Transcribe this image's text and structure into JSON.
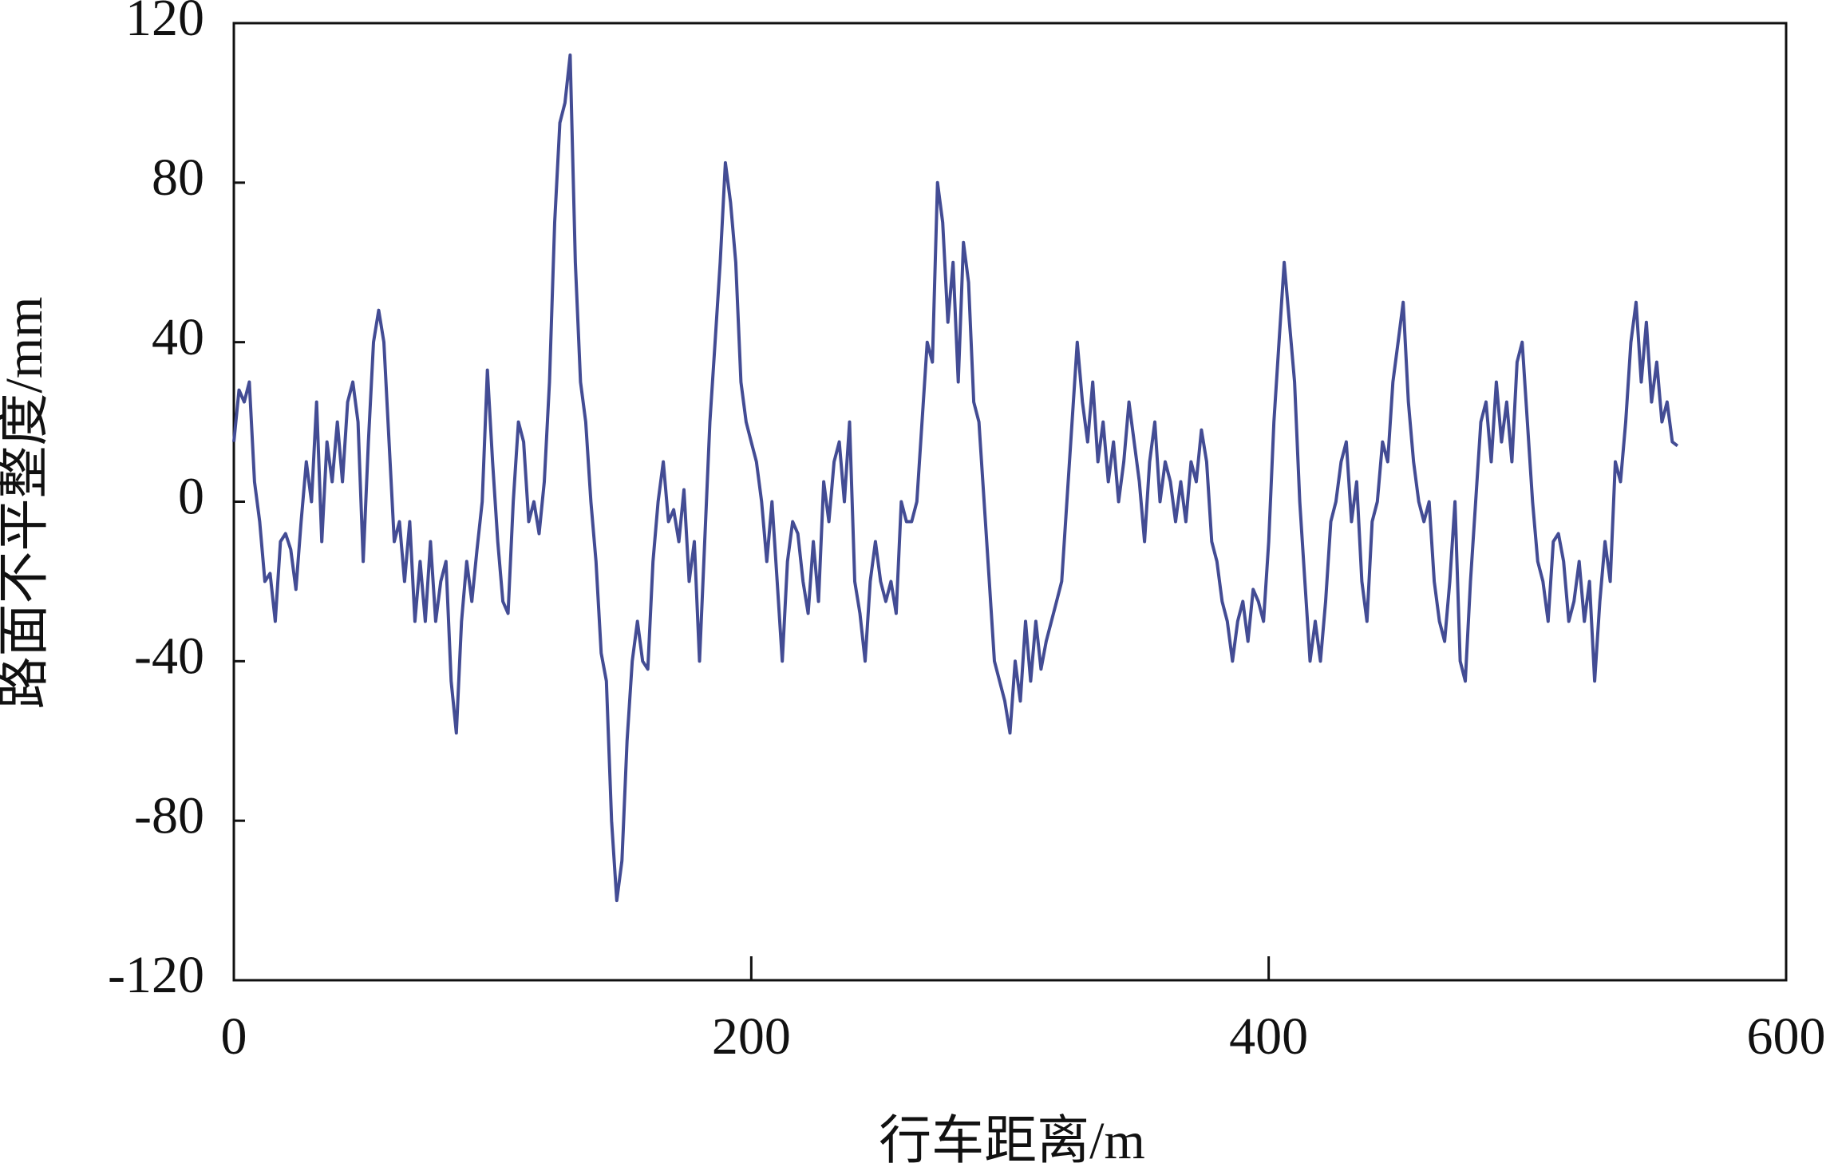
{
  "chart_data": {
    "type": "line",
    "x_label": "行车距离/m",
    "y_label": "路面不平整度/mm",
    "xlim": [
      0,
      600
    ],
    "xticks": [
      0,
      200,
      400,
      600
    ],
    "ylim": [
      -120,
      120
    ],
    "yticks": [
      -120,
      -80,
      -40,
      0,
      40,
      80,
      120
    ],
    "color": "#434c94",
    "x": [
      0,
      2,
      4,
      6,
      8,
      10,
      12,
      14,
      16,
      18,
      20,
      22,
      24,
      26,
      28,
      30,
      32,
      34,
      36,
      38,
      40,
      42,
      44,
      46,
      48,
      50,
      52,
      54,
      56,
      58,
      60,
      62,
      64,
      66,
      68,
      70,
      72,
      74,
      76,
      78,
      80,
      82,
      84,
      86,
      88,
      90,
      92,
      94,
      96,
      98,
      100,
      102,
      104,
      106,
      108,
      110,
      112,
      114,
      116,
      118,
      120,
      122,
      124,
      126,
      128,
      130,
      132,
      134,
      136,
      138,
      140,
      142,
      144,
      146,
      148,
      150,
      152,
      154,
      156,
      158,
      160,
      162,
      164,
      166,
      168,
      170,
      172,
      174,
      176,
      178,
      180,
      182,
      184,
      186,
      188,
      190,
      192,
      194,
      196,
      198,
      200,
      202,
      204,
      206,
      208,
      210,
      212,
      214,
      216,
      218,
      220,
      222,
      224,
      226,
      228,
      230,
      232,
      234,
      236,
      238,
      240,
      242,
      244,
      246,
      248,
      250,
      252,
      254,
      256,
      258,
      260,
      262,
      264,
      266,
      268,
      270,
      272,
      274,
      276,
      278,
      280,
      282,
      284,
      286,
      288,
      290,
      292,
      294,
      296,
      298,
      300,
      302,
      304,
      306,
      308,
      310,
      312,
      314,
      316,
      318,
      320,
      322,
      324,
      326,
      328,
      330,
      332,
      334,
      336,
      338,
      340,
      342,
      344,
      346,
      348,
      350,
      352,
      354,
      356,
      358,
      360,
      362,
      364,
      366,
      368,
      370,
      372,
      374,
      376,
      378,
      380,
      382,
      384,
      386,
      388,
      390,
      392,
      394,
      396,
      398,
      400,
      402,
      404,
      406,
      408,
      410,
      412,
      414,
      416,
      418,
      420,
      422,
      424,
      426,
      428,
      430,
      432,
      434,
      436,
      438,
      440,
      442,
      444,
      446,
      448,
      450,
      452,
      454,
      456,
      458,
      460,
      462,
      464,
      466,
      468,
      470,
      472,
      474,
      476,
      478,
      480,
      482,
      484,
      486,
      488,
      490,
      492,
      494,
      496,
      498,
      500,
      502,
      504,
      506,
      508,
      510,
      512,
      514,
      516,
      518,
      520,
      522,
      524,
      526,
      528,
      530,
      532,
      534,
      536,
      538,
      540,
      542,
      544,
      546,
      548,
      550,
      552,
      554,
      556,
      558
    ],
    "values": [
      15,
      28,
      25,
      30,
      5,
      -5,
      -20,
      -18,
      -30,
      -10,
      -8,
      -12,
      -22,
      -5,
      10,
      0,
      25,
      -10,
      15,
      5,
      20,
      5,
      25,
      30,
      20,
      -15,
      15,
      40,
      48,
      40,
      15,
      -10,
      -5,
      -20,
      -5,
      -30,
      -15,
      -30,
      -10,
      -30,
      -20,
      -15,
      -45,
      -58,
      -30,
      -15,
      -25,
      -12,
      0,
      33,
      10,
      -10,
      -25,
      -28,
      0,
      20,
      15,
      -5,
      0,
      -8,
      5,
      30,
      70,
      95,
      100,
      112,
      60,
      30,
      20,
      0,
      -15,
      -38,
      -45,
      -80,
      -100,
      -90,
      -60,
      -40,
      -30,
      -40,
      -42,
      -15,
      0,
      10,
      -5,
      -2,
      -10,
      3,
      -20,
      -10,
      -40,
      -10,
      20,
      40,
      60,
      85,
      75,
      60,
      30,
      20,
      15,
      10,
      0,
      -15,
      0,
      -20,
      -40,
      -15,
      -5,
      -8,
      -20,
      -28,
      -10,
      -25,
      5,
      -5,
      10,
      15,
      0,
      20,
      -20,
      -28,
      -40,
      -20,
      -10,
      -20,
      -25,
      -20,
      -28,
      0,
      -5,
      -5,
      0,
      20,
      40,
      35,
      80,
      70,
      45,
      60,
      30,
      65,
      55,
      25,
      20,
      0,
      -20,
      -40,
      -45,
      -50,
      -58,
      -40,
      -50,
      -30,
      -45,
      -30,
      -42,
      -35,
      -30,
      -25,
      -20,
      0,
      20,
      40,
      25,
      15,
      30,
      10,
      20,
      5,
      15,
      0,
      10,
      25,
      15,
      5,
      -10,
      10,
      20,
      0,
      10,
      5,
      -5,
      5,
      -5,
      10,
      5,
      18,
      10,
      -10,
      -15,
      -25,
      -30,
      -40,
      -30,
      -25,
      -35,
      -22,
      -25,
      -30,
      -10,
      20,
      40,
      60,
      45,
      30,
      0,
      -20,
      -40,
      -30,
      -40,
      -25,
      -5,
      0,
      10,
      15,
      -5,
      5,
      -20,
      -30,
      -5,
      0,
      15,
      10,
      30,
      40,
      50,
      25,
      10,
      0,
      -5,
      0,
      -20,
      -30,
      -35,
      -20,
      0,
      -40,
      -45,
      -20,
      0,
      20,
      25,
      10,
      30,
      15,
      25,
      10,
      35,
      40,
      20,
      0,
      -15,
      -20,
      -30,
      -10,
      -8,
      -15,
      -30,
      -25,
      -15,
      -30,
      -20,
      -45,
      -25,
      -10,
      -20,
      10,
      5,
      20,
      40,
      50,
      30,
      45,
      25,
      35,
      20,
      25,
      15,
      14
    ]
  }
}
